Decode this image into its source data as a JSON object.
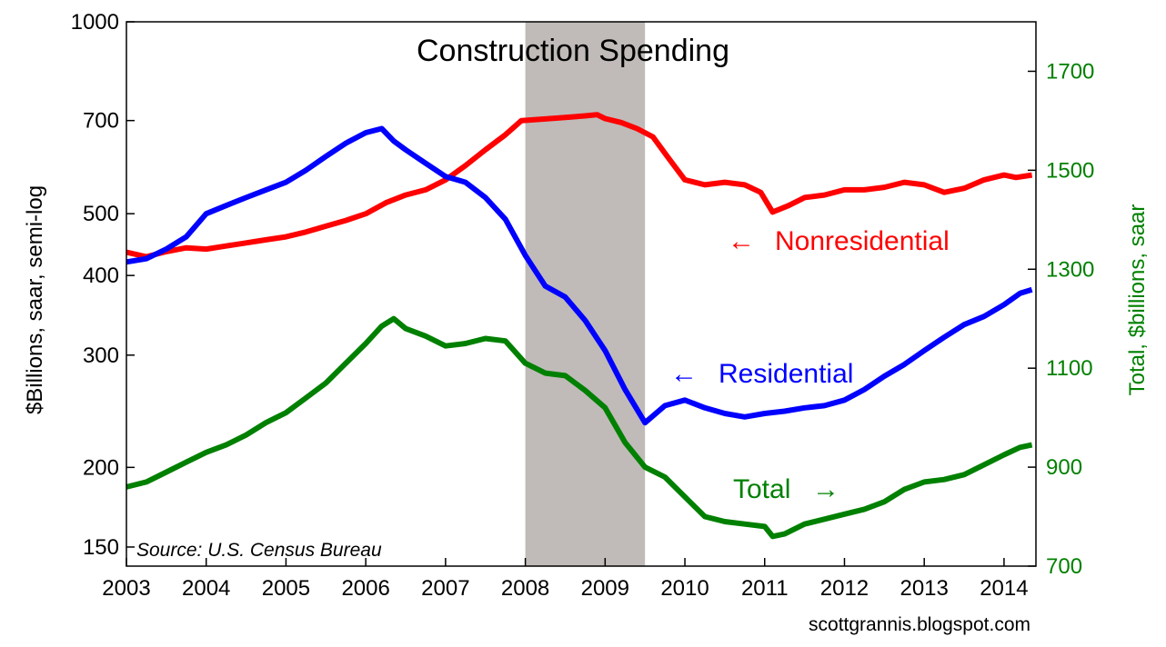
{
  "chart_data": {
    "type": "line",
    "title": "Construction Spending",
    "source": "Source: U.S. Census Bureau",
    "credit": "scottgrannis.blogspot.com",
    "recession": {
      "start": 2008.0,
      "end": 2009.5
    },
    "x_axis": {
      "min": 2003,
      "max": 2014.4,
      "ticks": [
        "2003",
        "2004",
        "2005",
        "2006",
        "2007",
        "2008",
        "2009",
        "2010",
        "2011",
        "2012",
        "2013",
        "2014"
      ]
    },
    "y_left": {
      "label": "$Billions, saar, semi-log",
      "scale": "log",
      "min": 140,
      "max": 1000,
      "ticks": [
        "150",
        "200",
        "300",
        "400",
        "500",
        "700",
        "1000"
      ]
    },
    "y_right": {
      "label": "Total, $billions, saar",
      "scale": "linear",
      "min": 700,
      "max": 1800,
      "ticks": [
        "700",
        "900",
        "1100",
        "1300",
        "1500",
        "1700"
      ],
      "color": "#008000"
    },
    "series": [
      {
        "name": "Nonresidential",
        "axis": "left",
        "color": "#ff0000",
        "arrow": "←",
        "points": [
          [
            2003.0,
            435
          ],
          [
            2003.25,
            428
          ],
          [
            2003.5,
            436
          ],
          [
            2003.75,
            442
          ],
          [
            2004.0,
            440
          ],
          [
            2004.25,
            445
          ],
          [
            2004.5,
            450
          ],
          [
            2004.75,
            455
          ],
          [
            2005.0,
            460
          ],
          [
            2005.25,
            468
          ],
          [
            2005.5,
            478
          ],
          [
            2005.75,
            488
          ],
          [
            2006.0,
            500
          ],
          [
            2006.25,
            520
          ],
          [
            2006.5,
            535
          ],
          [
            2006.75,
            545
          ],
          [
            2007.0,
            565
          ],
          [
            2007.25,
            595
          ],
          [
            2007.5,
            630
          ],
          [
            2007.75,
            665
          ],
          [
            2007.95,
            700
          ],
          [
            2008.25,
            704
          ],
          [
            2008.5,
            708
          ],
          [
            2008.75,
            712
          ],
          [
            2008.9,
            715
          ],
          [
            2009.0,
            705
          ],
          [
            2009.2,
            695
          ],
          [
            2009.4,
            680
          ],
          [
            2009.6,
            660
          ],
          [
            2009.8,
            610
          ],
          [
            2010.0,
            565
          ],
          [
            2010.25,
            555
          ],
          [
            2010.5,
            560
          ],
          [
            2010.75,
            555
          ],
          [
            2010.95,
            540
          ],
          [
            2011.1,
            503
          ],
          [
            2011.3,
            515
          ],
          [
            2011.5,
            530
          ],
          [
            2011.75,
            535
          ],
          [
            2012.0,
            545
          ],
          [
            2012.25,
            545
          ],
          [
            2012.5,
            550
          ],
          [
            2012.75,
            560
          ],
          [
            2013.0,
            555
          ],
          [
            2013.25,
            540
          ],
          [
            2013.5,
            548
          ],
          [
            2013.75,
            565
          ],
          [
            2014.0,
            575
          ],
          [
            2014.15,
            570
          ],
          [
            2014.35,
            575
          ]
        ]
      },
      {
        "name": "Residential",
        "axis": "left",
        "color": "#0000ff",
        "arrow": "←",
        "points": [
          [
            2003.0,
            420
          ],
          [
            2003.25,
            425
          ],
          [
            2003.5,
            440
          ],
          [
            2003.75,
            460
          ],
          [
            2004.0,
            500
          ],
          [
            2004.25,
            515
          ],
          [
            2004.5,
            530
          ],
          [
            2004.75,
            545
          ],
          [
            2005.0,
            560
          ],
          [
            2005.25,
            585
          ],
          [
            2005.5,
            615
          ],
          [
            2005.75,
            645
          ],
          [
            2006.0,
            670
          ],
          [
            2006.2,
            680
          ],
          [
            2006.35,
            650
          ],
          [
            2006.5,
            630
          ],
          [
            2006.75,
            600
          ],
          [
            2007.0,
            572
          ],
          [
            2007.25,
            560
          ],
          [
            2007.5,
            530
          ],
          [
            2007.75,
            490
          ],
          [
            2008.0,
            430
          ],
          [
            2008.25,
            385
          ],
          [
            2008.5,
            370
          ],
          [
            2008.75,
            340
          ],
          [
            2009.0,
            305
          ],
          [
            2009.25,
            265
          ],
          [
            2009.5,
            235
          ],
          [
            2009.75,
            250
          ],
          [
            2010.0,
            255
          ],
          [
            2010.25,
            248
          ],
          [
            2010.5,
            243
          ],
          [
            2010.75,
            240
          ],
          [
            2011.0,
            243
          ],
          [
            2011.25,
            245
          ],
          [
            2011.5,
            248
          ],
          [
            2011.75,
            250
          ],
          [
            2012.0,
            255
          ],
          [
            2012.25,
            265
          ],
          [
            2012.5,
            278
          ],
          [
            2012.75,
            290
          ],
          [
            2013.0,
            305
          ],
          [
            2013.25,
            320
          ],
          [
            2013.5,
            335
          ],
          [
            2013.75,
            345
          ],
          [
            2014.0,
            360
          ],
          [
            2014.2,
            375
          ],
          [
            2014.35,
            380
          ]
        ]
      },
      {
        "name": "Total",
        "axis": "right",
        "color": "#008000",
        "arrow": "→",
        "points": [
          [
            2003.0,
            860
          ],
          [
            2003.25,
            870
          ],
          [
            2003.5,
            890
          ],
          [
            2003.75,
            910
          ],
          [
            2004.0,
            930
          ],
          [
            2004.25,
            945
          ],
          [
            2004.5,
            965
          ],
          [
            2004.75,
            990
          ],
          [
            2005.0,
            1010
          ],
          [
            2005.25,
            1040
          ],
          [
            2005.5,
            1070
          ],
          [
            2005.75,
            1110
          ],
          [
            2006.0,
            1150
          ],
          [
            2006.2,
            1185
          ],
          [
            2006.35,
            1200
          ],
          [
            2006.5,
            1180
          ],
          [
            2006.75,
            1165
          ],
          [
            2007.0,
            1145
          ],
          [
            2007.25,
            1150
          ],
          [
            2007.5,
            1160
          ],
          [
            2007.75,
            1155
          ],
          [
            2008.0,
            1110
          ],
          [
            2008.25,
            1090
          ],
          [
            2008.5,
            1085
          ],
          [
            2008.75,
            1055
          ],
          [
            2009.0,
            1020
          ],
          [
            2009.25,
            950
          ],
          [
            2009.5,
            900
          ],
          [
            2009.75,
            880
          ],
          [
            2010.0,
            840
          ],
          [
            2010.25,
            800
          ],
          [
            2010.5,
            790
          ],
          [
            2010.75,
            785
          ],
          [
            2011.0,
            780
          ],
          [
            2011.1,
            760
          ],
          [
            2011.25,
            765
          ],
          [
            2011.5,
            785
          ],
          [
            2011.75,
            795
          ],
          [
            2012.0,
            805
          ],
          [
            2012.25,
            815
          ],
          [
            2012.5,
            830
          ],
          [
            2012.75,
            855
          ],
          [
            2013.0,
            870
          ],
          [
            2013.25,
            875
          ],
          [
            2013.5,
            885
          ],
          [
            2013.75,
            905
          ],
          [
            2014.0,
            925
          ],
          [
            2014.2,
            940
          ],
          [
            2014.35,
            945
          ]
        ]
      }
    ]
  }
}
